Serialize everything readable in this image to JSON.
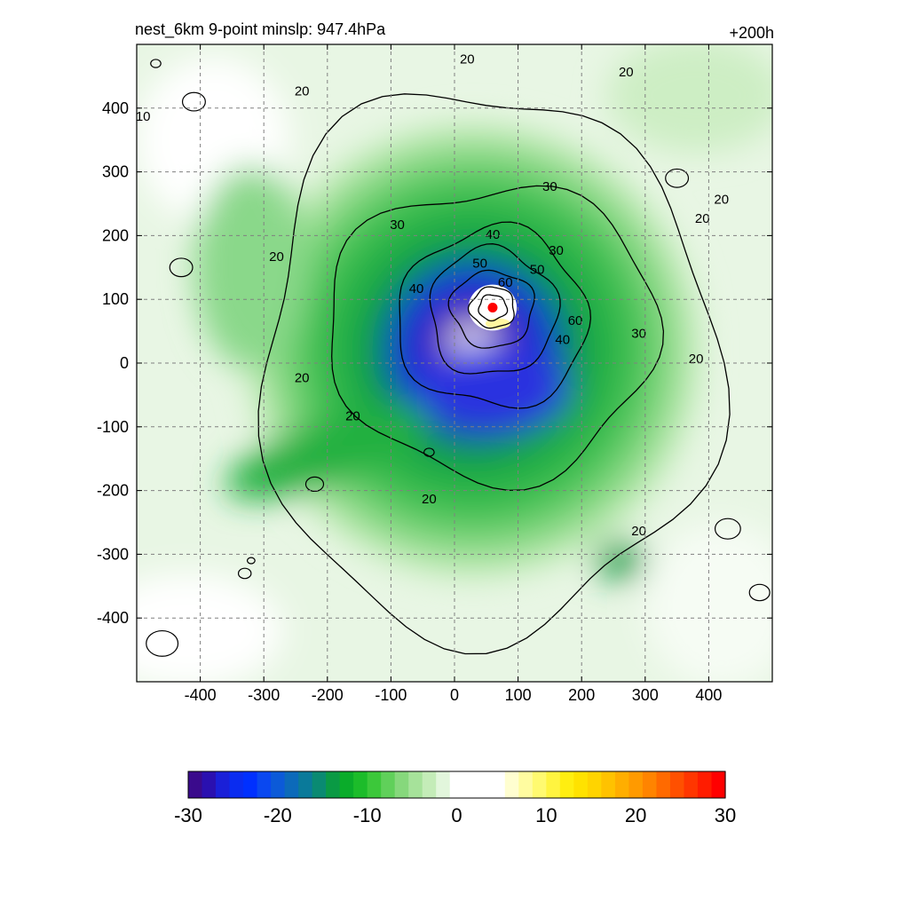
{
  "title": "nest_6km  9-point minslp: 947.4hPa",
  "time_label": "+200h",
  "chart_data": {
    "type": "heatmap",
    "title": "nest_6km  9-point minslp: 947.4hPa",
    "forecast_hour_label": "+200h",
    "xlabel": "",
    "ylabel": "",
    "xlim": [
      -500,
      500
    ],
    "ylim": [
      -500,
      500
    ],
    "x_ticks": [
      -400,
      -300,
      -200,
      -100,
      0,
      100,
      200,
      300,
      400
    ],
    "y_ticks": [
      -400,
      -300,
      -200,
      -100,
      0,
      100,
      200,
      300,
      400
    ],
    "grid": true,
    "center_marker": {
      "x": 60,
      "y": 87,
      "color": "#ff0000"
    },
    "shaded_field": {
      "approx_features": [
        {
          "x": 60,
          "y": 87,
          "radius": 45,
          "value": 2
        },
        {
          "x": 30,
          "y": 40,
          "radius": 130,
          "value": -22
        },
        {
          "x": 0,
          "y": 0,
          "radius": 330,
          "value": -8
        },
        {
          "x": -250,
          "y": 350,
          "radius": 120,
          "value": -3
        }
      ]
    },
    "contours": {
      "labels": [
        "20",
        "20",
        "20",
        "20",
        "20",
        "20",
        "20",
        "20",
        "20",
        "20",
        "20",
        "30",
        "30",
        "30",
        "30",
        "40",
        "40",
        "40",
        "50",
        "50",
        "60",
        "60",
        "10"
      ],
      "levels": [
        10,
        20,
        30,
        40,
        50,
        60
      ],
      "rings": [
        {
          "level": 20,
          "cx": 50,
          "cy": 0,
          "rx": 360,
          "ry": 430
        },
        {
          "level": 30,
          "cx": 60,
          "cy": 50,
          "rx": 260,
          "ry": 230
        },
        {
          "level": 40,
          "cx": 60,
          "cy": 70,
          "rx": 150,
          "ry": 140
        },
        {
          "level": 50,
          "cx": 60,
          "cy": 80,
          "rx": 100,
          "ry": 100
        },
        {
          "level": 60,
          "cx": 60,
          "cy": 85,
          "rx": 65,
          "ry": 60
        },
        {
          "level": 60,
          "cx": 60,
          "cy": 87,
          "rx": 35,
          "ry": 32
        },
        {
          "level": 60,
          "cx": 60,
          "cy": 87,
          "rx": 22,
          "ry": 20
        }
      ]
    },
    "colorbar": {
      "min": -30,
      "max": 30,
      "ticks": [
        "-30",
        "-20",
        "-10",
        "0",
        "10",
        "20",
        "30"
      ],
      "colors": [
        "#3a0a8c",
        "#2a10b0",
        "#1a20d8",
        "#0a2cf0",
        "#0030ff",
        "#0a48f0",
        "#0c5ad8",
        "#0c6aba",
        "#0a7a9a",
        "#0a8a72",
        "#0a9a44",
        "#0aac2a",
        "#1cbc2a",
        "#3cc83a",
        "#60d05a",
        "#86d87c",
        "#a6e29a",
        "#c4ecb8",
        "#e2f6dc",
        "#ffffff",
        "#ffffff",
        "#ffffff",
        "#ffffff",
        "#fffed0",
        "#fffca0",
        "#fffa70",
        "#fff440",
        "#ffee10",
        "#ffe200",
        "#ffd400",
        "#ffc200",
        "#ffae00",
        "#ff9a00",
        "#ff8400",
        "#ff6a00",
        "#ff5000",
        "#ff3600",
        "#ff1c00",
        "#ff0000"
      ]
    }
  }
}
